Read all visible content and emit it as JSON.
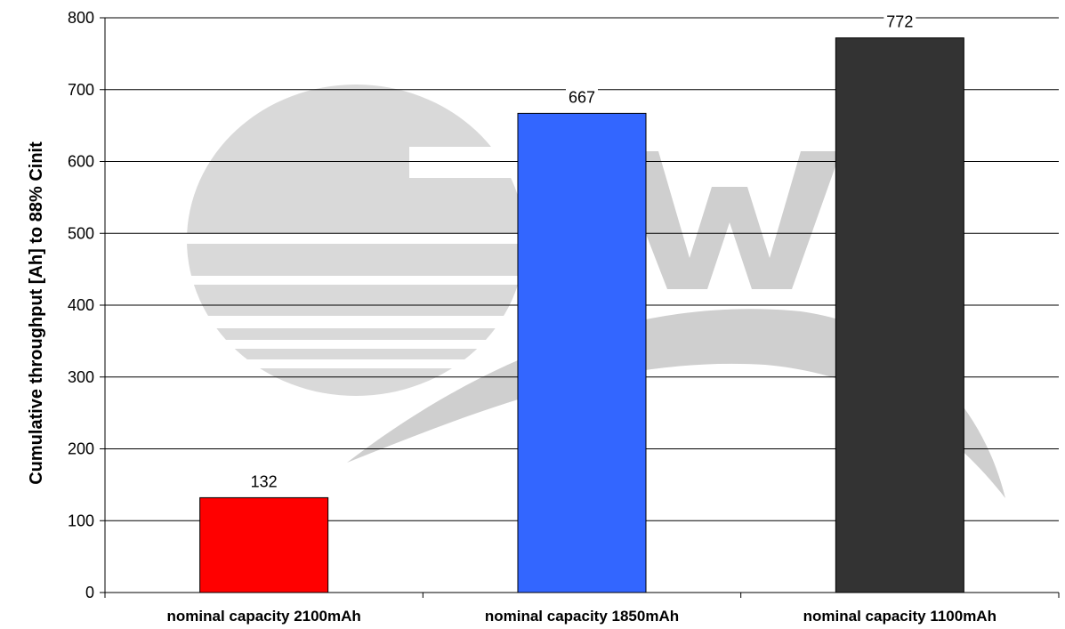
{
  "chart_data": {
    "type": "bar",
    "title": "",
    "xlabel": "",
    "ylabel": "Cumulative throughput [Ah] to 88% Cinit",
    "categories": [
      "nominal capacity 2100mAh",
      "nominal capacity 1850mAh",
      "nominal capacity 1100mAh"
    ],
    "values": [
      132,
      667,
      772
    ],
    "data_labels": [
      "132",
      "667",
      "772"
    ],
    "ylim": [
      0,
      800
    ],
    "yticks": [
      0,
      100,
      200,
      300,
      400,
      500,
      600,
      700,
      800
    ],
    "grid": true,
    "legend": "none",
    "bar_colors": [
      "#ff0000",
      "#3366ff",
      "#333333"
    ],
    "bar_border": "#000000",
    "watermark": "ZSW"
  }
}
